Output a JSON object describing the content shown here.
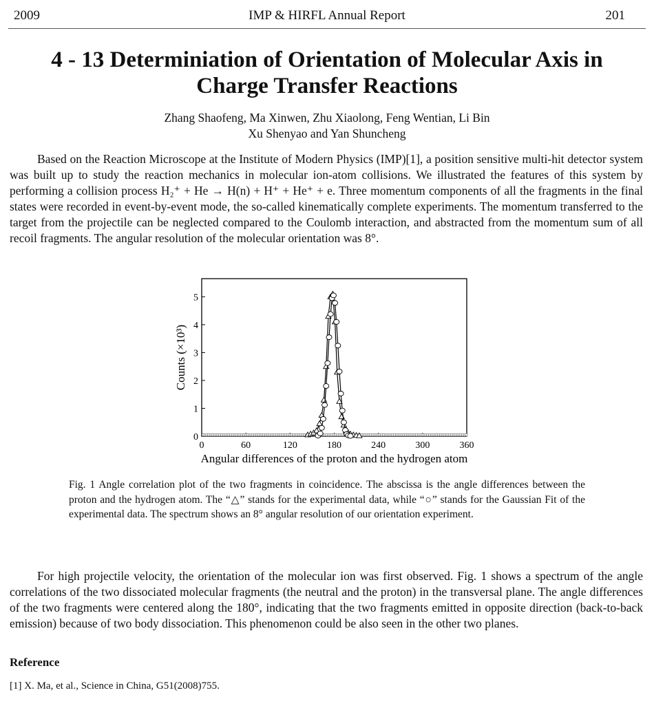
{
  "header": {
    "year": "2009",
    "journal": "IMP & HIRFL Annual Report",
    "page": "201"
  },
  "title": "4 - 13   Determiniation of Orientation of Molecular Axis in Charge Transfer Reactions",
  "authors": {
    "line1": "Zhang Shaofeng, Ma Xinwen, Zhu Xiaolong, Feng Wentian, Li Bin",
    "line2": "Xu Shenyao and Yan Shuncheng"
  },
  "body": {
    "para1": "Based on the Reaction Microscope at the Institute of Modern Physics (IMP)[1], a position sensitive multi-hit detector system was built up to study the reaction mechanics in molecular ion-atom collisions. We illustrated the features of this system by performing a collision process H₂⁺ + He → H(n) + H⁺ + He⁺ + e. Three momentum components of all the fragments in the final states were recorded in event-by-event mode, the so-called kinematically complete experiments. The momentum transferred to the target from the projectile can be neglected compared to the Coulomb interaction, and abstracted from the momentum sum of all recoil fragments. The angular resolution of the molecular orientation was 8°.",
    "para2": "For high projectile velocity, the orientation of the molecular ion was first observed. Fig. 1 shows a spectrum of the angle correlations of the two dissociated molecular fragments (the neutral and the proton) in the transversal plane. The angle differences of the two fragments were centered along the 180°, indicating that the two fragments emitted in opposite direction (back-to-back emission) because of two body dissociation. This phenomenon could be also seen in the other two planes."
  },
  "caption": "Fig. 1  Angle correlation plot of the two fragments in coincidence. The abscissa is the angle differences between the proton and the hydrogen atom. The “△” stands for the experimental data, while “○” stands for the Gaussian Fit of the experimental data. The spectrum shows an 8° angular resolution of our orientation experiment.",
  "references": {
    "heading": "Reference",
    "items": [
      "[1] X. Ma, et al., Science in China, G51(2008)755."
    ]
  },
  "chart_data": {
    "type": "scatter",
    "title": "",
    "xlabel": "Angular differences of the proton and the hydrogen atom",
    "ylabel": "Counts (×10³)",
    "xlim": [
      0,
      360
    ],
    "ylim": [
      0,
      5.65
    ],
    "xticks": [
      "0",
      "60",
      "120",
      "180",
      "240",
      "300",
      "360"
    ],
    "yticks": [
      "0",
      "1",
      "2",
      "3",
      "4",
      "5"
    ],
    "grid": false,
    "series": [
      {
        "name": "Experimental data",
        "marker": "triangle",
        "x": [
          144,
          148,
          152,
          156,
          160,
          163,
          166,
          169,
          172,
          175,
          178,
          181,
          184,
          187,
          190,
          193,
          196,
          199,
          202,
          206,
          210,
          214
        ],
        "y": [
          0.05,
          0.08,
          0.12,
          0.2,
          0.45,
          0.75,
          1.3,
          2.5,
          4.3,
          5.0,
          5.1,
          4.1,
          2.3,
          1.25,
          0.7,
          0.4,
          0.2,
          0.12,
          0.08,
          0.05,
          0.03,
          0.02
        ]
      },
      {
        "name": "Gaussian Fit",
        "marker": "circle",
        "x": [
          158,
          161,
          163,
          165,
          167,
          169,
          171,
          173,
          175,
          177,
          179,
          181,
          183,
          185,
          187,
          189,
          191,
          193,
          195,
          197,
          199,
          202
        ],
        "y": [
          0.02,
          0.1,
          0.3,
          0.62,
          1.12,
          1.8,
          2.62,
          3.55,
          4.38,
          4.95,
          5.05,
          4.78,
          4.1,
          3.25,
          2.32,
          1.53,
          0.92,
          0.5,
          0.22,
          0.08,
          0.03,
          0.01
        ]
      }
    ]
  }
}
